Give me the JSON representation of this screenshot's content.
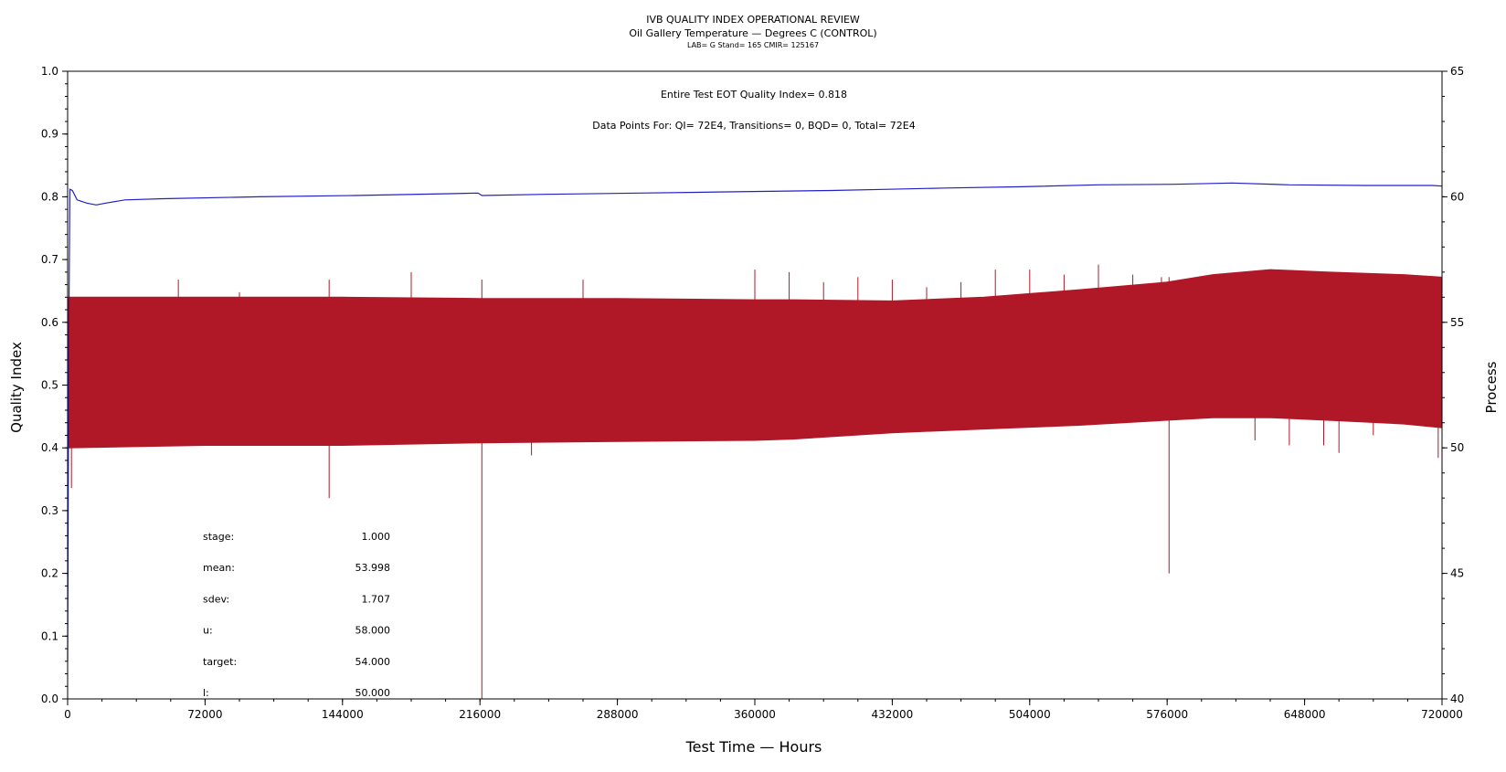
{
  "chart_data": {
    "type": "line",
    "title": "IVB QUALITY INDEX OPERATIONAL REVIEW",
    "subtitle": "Oil Gallery Temperature — Degrees C (CONTROL)",
    "subtitle2": "LAB= G Stand= 165 CMIR= 125167",
    "xlabel": "Test Time — Hours",
    "ylabel": "Quality Index",
    "y2label": "Process",
    "xlim": [
      0,
      720000
    ],
    "ylim": [
      0,
      1.0
    ],
    "y2lim": [
      40,
      65
    ],
    "xticks": [
      "0",
      "72000",
      "144000",
      "216000",
      "288000",
      "360000",
      "432000",
      "504000",
      "576000",
      "648000",
      "720000"
    ],
    "yticks": [
      "0.0",
      "0.1",
      "0.2",
      "0.3",
      "0.4",
      "0.5",
      "0.6",
      "0.7",
      "0.8",
      "0.9",
      "1.0"
    ],
    "y2ticks": [
      "40",
      "45",
      "50",
      "55",
      "60",
      "65"
    ],
    "annotations": {
      "quality_index": "Entire Test EOT Quality Index=   0.818",
      "data_points": "Data Points For: QI=  72E4, Transitions=      0, BQD=      0, Total=  72E4"
    },
    "stats": [
      {
        "label": "stage:",
        "value": "1.000"
      },
      {
        "label": "mean:",
        "value": "53.998"
      },
      {
        "label": "sdev:",
        "value": "1.707"
      },
      {
        "label": "u:",
        "value": "58.000"
      },
      {
        "label": "target:",
        "value": "54.000"
      },
      {
        "label": "l:",
        "value": "50.000"
      }
    ],
    "series": [
      {
        "axis": "left",
        "color": "#2020c8",
        "x": [
          0,
          600,
          1200,
          2500,
          5000,
          10000,
          15000,
          20000,
          30000,
          50000,
          100000,
          150000,
          200000,
          215000,
          217000,
          250000,
          300000,
          350000,
          400000,
          430000,
          460000,
          500000,
          540000,
          580000,
          610000,
          640000,
          680000,
          715000,
          720000
        ],
        "y": [
          0.06,
          0.59,
          0.812,
          0.81,
          0.795,
          0.79,
          0.787,
          0.79,
          0.795,
          0.797,
          0.8,
          0.802,
          0.805,
          0.806,
          0.802,
          0.804,
          0.806,
          0.808,
          0.81,
          0.812,
          0.814,
          0.816,
          0.819,
          0.82,
          0.822,
          0.819,
          0.818,
          0.818,
          0.817
        ]
      },
      {
        "axis": "right",
        "color": "#b01828",
        "band_x": [
          0,
          72000,
          144000,
          216000,
          288000,
          360000,
          380000,
          432000,
          480000,
          530000,
          576000,
          600000,
          630000,
          660000,
          700000,
          720000
        ],
        "band_upper": [
          56.0,
          56.0,
          56.0,
          55.95,
          55.95,
          55.9,
          55.9,
          55.85,
          56.0,
          56.3,
          56.6,
          56.9,
          57.1,
          57.0,
          56.9,
          56.8
        ],
        "band_lower": [
          50.0,
          50.1,
          50.1,
          50.2,
          50.25,
          50.3,
          50.35,
          50.6,
          50.75,
          50.9,
          51.1,
          51.2,
          51.2,
          51.1,
          50.95,
          50.8
        ],
        "spikes_up": [
          [
            58000,
            56.7
          ],
          [
            90000,
            56.2
          ],
          [
            137000,
            56.7
          ],
          [
            180000,
            57.0
          ],
          [
            217000,
            56.7
          ],
          [
            270000,
            56.7
          ],
          [
            360000,
            57.1
          ],
          [
            378000,
            57.0
          ],
          [
            396000,
            56.6
          ],
          [
            414000,
            56.8
          ],
          [
            432000,
            56.7
          ],
          [
            450000,
            56.4
          ],
          [
            468000,
            56.6
          ],
          [
            486000,
            57.1
          ],
          [
            504000,
            57.1
          ],
          [
            522000,
            56.9
          ],
          [
            540000,
            57.3
          ],
          [
            558000,
            56.9
          ],
          [
            573000,
            56.8
          ],
          [
            577000,
            56.8
          ],
          [
            595000,
            56.8
          ]
        ],
        "spikes_down": [
          [
            2000,
            48.4
          ],
          [
            137000,
            48.0
          ],
          [
            217000,
            40.0
          ],
          [
            243000,
            49.7
          ],
          [
            577000,
            45.0
          ],
          [
            622000,
            50.3
          ],
          [
            640000,
            50.1
          ],
          [
            658000,
            50.1
          ],
          [
            666000,
            49.8
          ],
          [
            684000,
            50.5
          ],
          [
            718000,
            49.6
          ]
        ]
      }
    ]
  }
}
